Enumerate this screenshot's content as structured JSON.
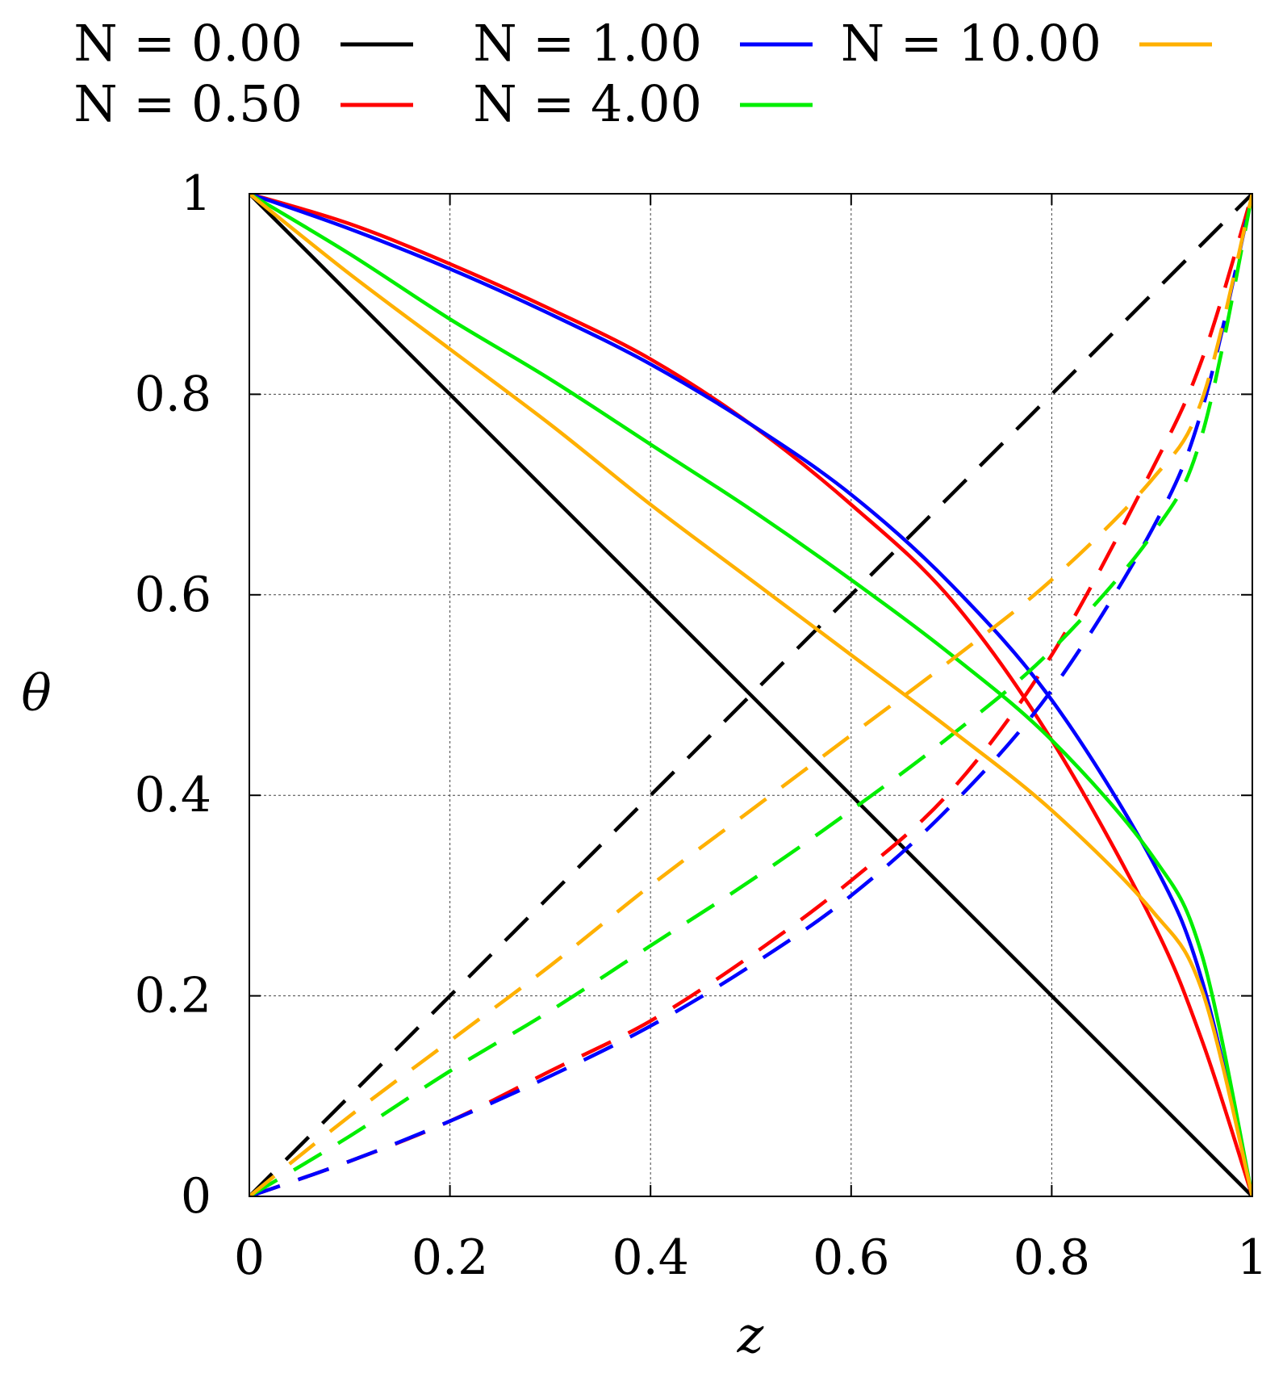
{
  "chart_data": {
    "type": "line",
    "title": "",
    "xlabel": "z",
    "ylabel": "θ",
    "xlim": [
      0,
      1
    ],
    "ylim": [
      0,
      1
    ],
    "x_ticks": [
      0,
      0.2,
      0.4,
      0.6,
      0.8,
      1
    ],
    "x_tick_labels": [
      "0",
      "0.2",
      "0.4",
      "0.6",
      "0.8",
      "1"
    ],
    "y_ticks": [
      0,
      0.2,
      0.4,
      0.6,
      0.8,
      1
    ],
    "y_tick_labels": [
      "0",
      "0.2",
      "0.4",
      "0.6",
      "0.8",
      "1"
    ],
    "grid": true,
    "legend_placement": "top, outside plot area",
    "legend_columns": 3,
    "series": [
      {
        "name": "N = 0.00",
        "color": "#000000",
        "solid": {
          "x": [
            0,
            0.2,
            0.4,
            0.6,
            0.8,
            1
          ],
          "y": [
            1,
            0.8,
            0.6,
            0.4,
            0.2,
            0
          ]
        },
        "dashed": {
          "x": [
            0,
            0.2,
            0.4,
            0.6,
            0.8,
            1
          ],
          "y": [
            0,
            0.2,
            0.4,
            0.6,
            0.8,
            1
          ]
        }
      },
      {
        "name": "N = 0.50",
        "color": "#ff0000",
        "solid": {
          "x": [
            0,
            0.1,
            0.2,
            0.3,
            0.4,
            0.5,
            0.6,
            0.7,
            0.8,
            0.9,
            0.95,
            1
          ],
          "y": [
            1,
            0.97,
            0.93,
            0.885,
            0.835,
            0.77,
            0.69,
            0.595,
            0.455,
            0.275,
            0.155,
            0
          ]
        },
        "dashed": {
          "x": [
            0,
            0.1,
            0.2,
            0.3,
            0.4,
            0.5,
            0.6,
            0.7,
            0.8,
            0.9,
            0.95,
            1
          ],
          "y": [
            0,
            0.035,
            0.075,
            0.125,
            0.175,
            0.24,
            0.315,
            0.405,
            0.54,
            0.725,
            0.835,
            1
          ]
        }
      },
      {
        "name": "N = 1.00",
        "color": "#0000ff",
        "solid": {
          "x": [
            0,
            0.1,
            0.2,
            0.3,
            0.4,
            0.5,
            0.6,
            0.7,
            0.8,
            0.9,
            0.95,
            1
          ],
          "y": [
            1,
            0.965,
            0.925,
            0.88,
            0.83,
            0.77,
            0.7,
            0.61,
            0.495,
            0.335,
            0.215,
            0
          ]
        },
        "dashed": {
          "x": [
            0,
            0.1,
            0.2,
            0.3,
            0.4,
            0.5,
            0.6,
            0.7,
            0.8,
            0.9,
            0.95,
            1
          ],
          "y": [
            0,
            0.035,
            0.075,
            0.12,
            0.17,
            0.23,
            0.3,
            0.39,
            0.505,
            0.665,
            0.785,
            1
          ]
        }
      },
      {
        "name": "N = 4.00",
        "color": "#00ee00",
        "solid": {
          "x": [
            0,
            0.1,
            0.2,
            0.3,
            0.4,
            0.5,
            0.6,
            0.7,
            0.8,
            0.9,
            0.95,
            1
          ],
          "y": [
            1,
            0.94,
            0.875,
            0.815,
            0.75,
            0.685,
            0.615,
            0.54,
            0.455,
            0.34,
            0.24,
            0
          ]
        },
        "dashed": {
          "x": [
            0,
            0.1,
            0.2,
            0.3,
            0.4,
            0.5,
            0.6,
            0.7,
            0.8,
            0.9,
            0.95,
            1
          ],
          "y": [
            0,
            0.06,
            0.125,
            0.185,
            0.25,
            0.315,
            0.385,
            0.46,
            0.545,
            0.66,
            0.76,
            1
          ]
        }
      },
      {
        "name": "N = 10.00",
        "color": "#ffb000",
        "solid": {
          "x": [
            0,
            0.1,
            0.2,
            0.3,
            0.4,
            0.5,
            0.6,
            0.7,
            0.8,
            0.9,
            0.95,
            1
          ],
          "y": [
            1,
            0.92,
            0.845,
            0.77,
            0.69,
            0.615,
            0.54,
            0.465,
            0.385,
            0.285,
            0.205,
            0
          ]
        },
        "dashed": {
          "x": [
            0,
            0.1,
            0.2,
            0.3,
            0.4,
            0.5,
            0.6,
            0.7,
            0.8,
            0.9,
            0.95,
            1
          ],
          "y": [
            0,
            0.08,
            0.155,
            0.23,
            0.31,
            0.385,
            0.46,
            0.535,
            0.615,
            0.715,
            0.795,
            1
          ]
        }
      }
    ]
  }
}
